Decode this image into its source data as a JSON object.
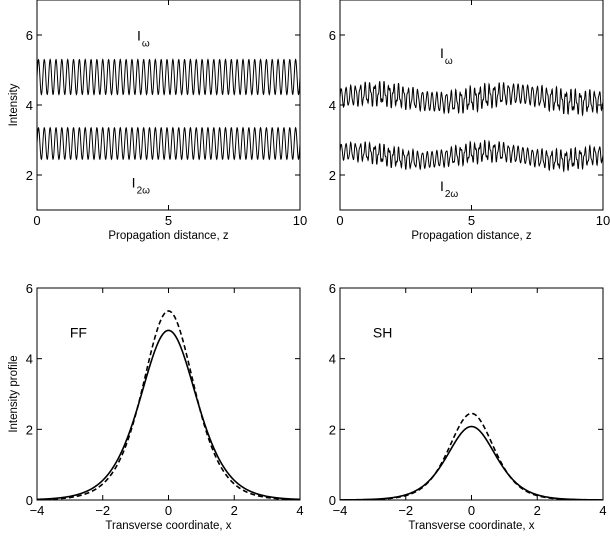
{
  "chart_data": [
    {
      "type": "line",
      "xlabel": "Propagation distance, z",
      "ylabel": "Intensity",
      "xlim": [
        0,
        10
      ],
      "ylim": [
        1,
        7
      ],
      "xticks": [
        0,
        5,
        10
      ],
      "yticks": [
        2,
        4,
        6
      ],
      "grid": false,
      "annotations": [
        {
          "text": "I",
          "sub": "ω",
          "x": 3.8,
          "y": 5.85
        },
        {
          "text": "I",
          "sub": "2ω",
          "x": 3.6,
          "y": 1.65
        }
      ],
      "series": [
        {
          "style": "solid",
          "baseline": 4.8,
          "amplitude": 0.5,
          "oscillations": 45,
          "x": [
            0,
            10
          ]
        },
        {
          "style": "solid",
          "baseline": 2.9,
          "amplitude": 0.45,
          "oscillations": 45,
          "x": [
            0,
            10
          ]
        }
      ]
    },
    {
      "type": "line",
      "xlabel": "Propagation distance, z",
      "ylabel": "",
      "xlim": [
        0,
        10
      ],
      "ylim": [
        1,
        7
      ],
      "xticks": [
        0,
        5,
        10
      ],
      "yticks": [
        2,
        4,
        6
      ],
      "grid": false,
      "annotations": [
        {
          "text": "I",
          "sub": "ω",
          "x": 3.8,
          "y": 5.35
        },
        {
          "text": "I",
          "sub": "2ω",
          "x": 3.8,
          "y": 1.55
        }
      ],
      "series": [
        {
          "style": "solid",
          "baseline": 4.2,
          "amplitude": 0.35,
          "oscillations": 55,
          "x": [
            0,
            10
          ]
        },
        {
          "style": "solid",
          "baseline": 2.55,
          "amplitude": 0.3,
          "oscillations": 55,
          "x": [
            0,
            10
          ]
        }
      ]
    },
    {
      "type": "line",
      "xlabel": "Transverse coordinate, x",
      "ylabel": "Intensity profile",
      "xlim": [
        -4,
        4
      ],
      "ylim": [
        0,
        6
      ],
      "xticks": [
        -4,
        -2,
        0,
        2,
        4
      ],
      "yticks": [
        0,
        2,
        4,
        6
      ],
      "grid": false,
      "annotations": [
        {
          "text": "FF",
          "x": -3.0,
          "y": 4.6
        }
      ],
      "series": [
        {
          "style": "solid",
          "peak": 4.8,
          "width": 1.15,
          "x": [
            -4,
            4
          ]
        },
        {
          "style": "dashed",
          "peak": 5.35,
          "width": 1.05,
          "x": [
            -4,
            4
          ]
        }
      ]
    },
    {
      "type": "line",
      "xlabel": "Transverse coordinate, x",
      "ylabel": "",
      "xlim": [
        -4,
        4
      ],
      "ylim": [
        0,
        6
      ],
      "xticks": [
        -4,
        -2,
        0,
        2,
        4
      ],
      "yticks": [
        0,
        2,
        4,
        6
      ],
      "grid": false,
      "annotations": [
        {
          "text": "SH",
          "x": -3.0,
          "y": 4.6
        }
      ],
      "series": [
        {
          "style": "solid",
          "peak": 2.08,
          "width": 1.0,
          "x": [
            -4,
            4
          ]
        },
        {
          "style": "dashed",
          "peak": 2.45,
          "width": 0.92,
          "x": [
            -4,
            4
          ]
        }
      ]
    }
  ]
}
